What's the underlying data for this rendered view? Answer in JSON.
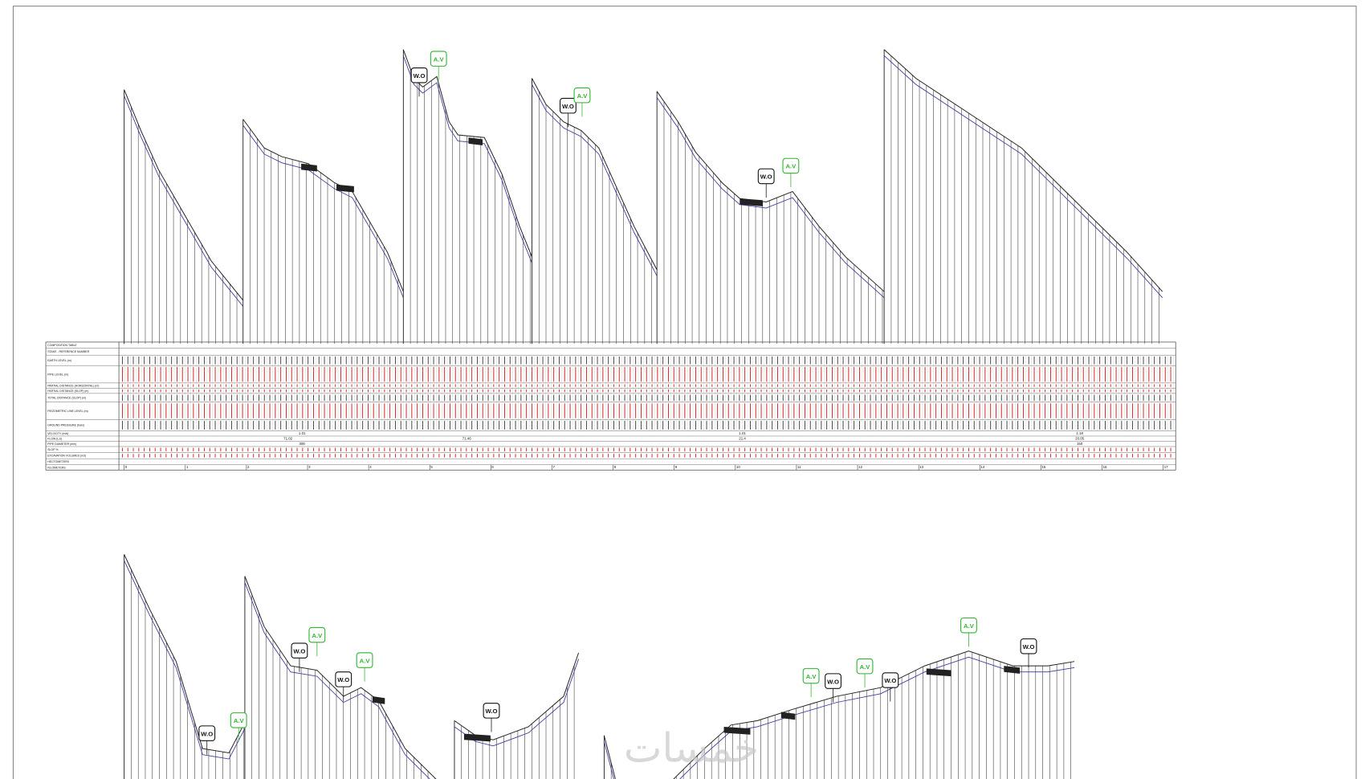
{
  "table": {
    "row_labels": [
      "COMPOSITION TABLE",
      "STAKE - REFERENCE NUMBER",
      "EARTH LEVEL (m)",
      "PIPE LEVEL (m)",
      "PARTIAL DISTANCE (HORIZONTAL) (m)",
      "PARTIAL DISTANCE (SLOP) (m)",
      "TOTAL DISTANCE (SLOP) (m)",
      "PIEZOMETRIC LINE LEVEL (m)",
      "GROUND PRESSURE (bars)",
      "VELOCITY (m/s)",
      "FLOW (L/s)",
      "PIPE DIAMETER (mm)",
      "SLOP %",
      "EXCAVATION VOLUMES (m3)",
      "HECTOMETERS",
      "KILOMETERS"
    ],
    "velocity": [
      "1.01",
      "1.01",
      "1.18"
    ],
    "flow": [
      "71.02",
      "71.46",
      "21.4",
      "20.05"
    ],
    "diameter": [
      "300",
      "150"
    ],
    "kilometers": [
      0,
      1,
      2,
      3,
      4,
      5,
      6,
      7,
      8,
      9,
      10,
      11,
      12,
      13,
      14,
      15,
      16,
      17
    ]
  },
  "markers": [
    "W.O",
    "A.V",
    "W.O",
    "A.V",
    "W.O",
    "A.V",
    "W.O",
    "A.V",
    "W.O",
    "A.V",
    "W.O",
    "A.V",
    "W.O",
    "A.V",
    "W.O",
    "A.V",
    "W.O",
    "A.V",
    "W.O"
  ],
  "watermark": "خمسات"
}
